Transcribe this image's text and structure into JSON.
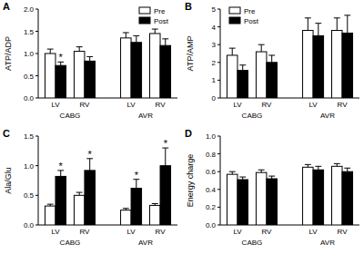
{
  "chart_data": [
    {
      "type": "bar",
      "title": "A",
      "y_label": "ATP/ADP",
      "categories": [
        "LV",
        "RV",
        "LV",
        "RV"
      ],
      "groups": [
        "CABG",
        "CABG",
        "AVR",
        "AVR"
      ],
      "series": [
        {
          "name": "Pre",
          "color": "#ffffff",
          "values": [
            1.0,
            1.05,
            1.35,
            1.45
          ],
          "errors": [
            0.1,
            0.1,
            0.12,
            0.1
          ]
        },
        {
          "name": "Post",
          "color": "#000000",
          "values": [
            0.73,
            0.83,
            1.25,
            1.18
          ],
          "errors": [
            0.08,
            0.1,
            0.15,
            0.15
          ],
          "annotations": [
            "*",
            null,
            null,
            null
          ]
        }
      ],
      "ylim": [
        0,
        2
      ],
      "yticks": [
        {
          "value": 0,
          "label": "0.0"
        },
        0.5,
        {
          "value": 1,
          "label": "1.0"
        },
        1.5,
        {
          "value": 2,
          "label": "2.0"
        }
      ],
      "legend": "upper right"
    },
    {
      "type": "bar",
      "title": "B",
      "y_label": "ATP/AMP",
      "categories": [
        "LV",
        "RV",
        "LV",
        "RV"
      ],
      "groups": [
        "CABG",
        "CABG",
        "AVR",
        "AVR"
      ],
      "series": [
        {
          "name": "Pre",
          "color": "#ffffff",
          "values": [
            2.4,
            2.6,
            3.8,
            3.8
          ],
          "errors": [
            0.4,
            0.4,
            0.7,
            0.7
          ]
        },
        {
          "name": "Post",
          "color": "#000000",
          "values": [
            1.55,
            2.0,
            3.5,
            3.65
          ],
          "errors": [
            0.3,
            0.4,
            0.7,
            1.0
          ]
        }
      ],
      "ylim": [
        0,
        5
      ],
      "yticks": [
        0,
        1,
        2,
        3,
        4,
        5
      ],
      "legend": "upper left"
    },
    {
      "type": "bar",
      "title": "C",
      "y_label": "Ala/Glu",
      "categories": [
        "LV",
        "RV",
        "LV",
        "RV"
      ],
      "groups": [
        "CABG",
        "CABG",
        "AVR",
        "AVR"
      ],
      "series": [
        {
          "name": "Pre",
          "color": "#ffffff",
          "values": [
            0.32,
            0.5,
            0.25,
            0.33
          ],
          "errors": [
            0.03,
            0.05,
            0.03,
            0.03
          ]
        },
        {
          "name": "Post",
          "color": "#000000",
          "values": [
            0.82,
            0.92,
            0.62,
            1.0
          ],
          "errors": [
            0.1,
            0.2,
            0.15,
            0.3
          ],
          "annotations": [
            "*",
            "*",
            "*",
            "*"
          ]
        }
      ],
      "ylim": [
        0,
        1.5
      ],
      "yticks": [
        {
          "value": 0,
          "label": "0.0"
        },
        0.5,
        {
          "value": 1,
          "label": "1.0"
        },
        1.5
      ]
    },
    {
      "type": "bar",
      "title": "D",
      "y_label": "Energy charge",
      "categories": [
        "LV",
        "RV",
        "LV",
        "RV"
      ],
      "groups": [
        "CABG",
        "CABG",
        "AVR",
        "AVR"
      ],
      "series": [
        {
          "name": "Pre",
          "color": "#ffffff",
          "values": [
            0.57,
            0.59,
            0.65,
            0.66
          ],
          "errors": [
            0.03,
            0.03,
            0.03,
            0.03
          ]
        },
        {
          "name": "Post",
          "color": "#000000",
          "values": [
            0.51,
            0.52,
            0.62,
            0.6
          ],
          "errors": [
            0.03,
            0.03,
            0.04,
            0.04
          ]
        }
      ],
      "ylim": [
        0,
        1
      ],
      "yticks": [
        {
          "value": 0,
          "label": "0.0"
        },
        0.2,
        0.4,
        0.6,
        0.8,
        {
          "value": 1,
          "label": "1.0"
        }
      ]
    }
  ]
}
